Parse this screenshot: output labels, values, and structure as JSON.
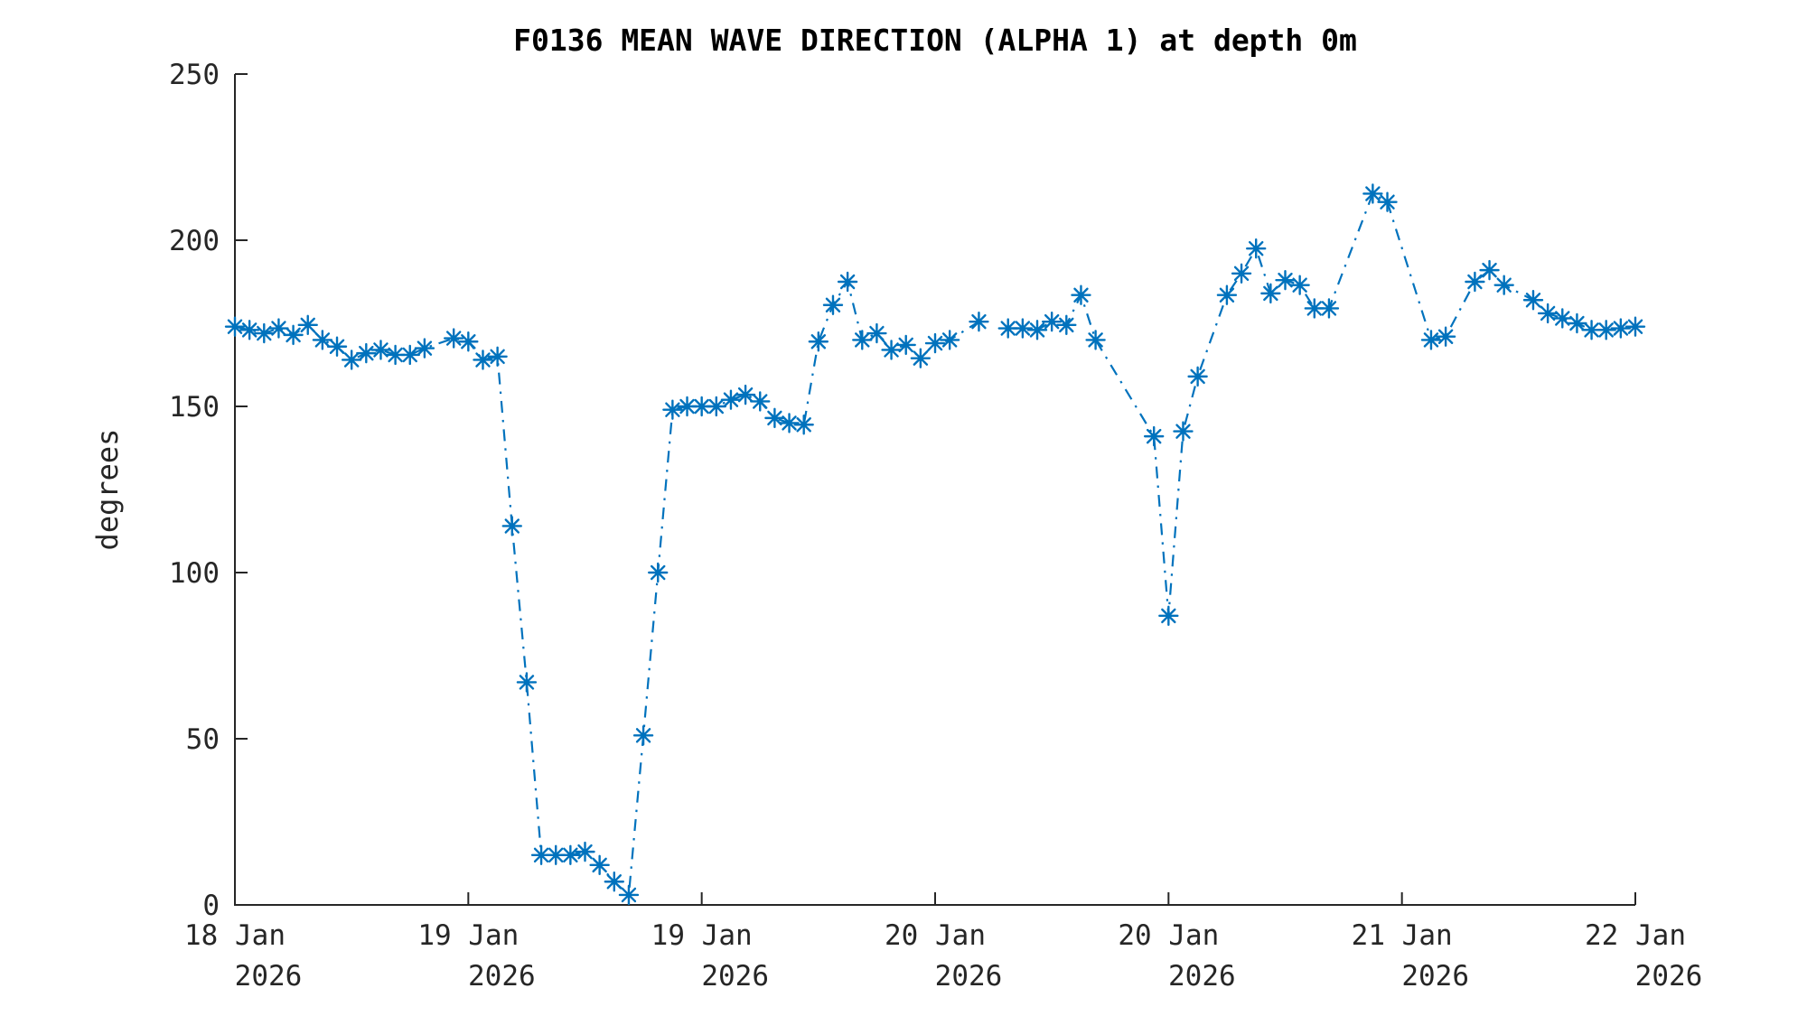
{
  "chart_data": {
    "type": "line",
    "title": "F0136 MEAN WAVE DIRECTION (ALPHA 1) at depth 0m",
    "ylabel": "degrees",
    "xlabel": "",
    "ylim": [
      0,
      250
    ],
    "yticks": [
      0,
      50,
      100,
      150,
      200,
      250
    ],
    "xticks": [
      {
        "day": "18 Jan",
        "year": "2026"
      },
      {
        "day": "19 Jan",
        "year": "2026"
      },
      {
        "day": "19 Jan",
        "year": "2026"
      },
      {
        "day": "20 Jan",
        "year": "2026"
      },
      {
        "day": "20 Jan",
        "year": "2026"
      },
      {
        "day": "21 Jan",
        "year": "2026"
      },
      {
        "day": "22 Jan",
        "year": "2026"
      }
    ],
    "x_start": "18 Jan 2026 00:00",
    "x_end": "22 Jan 2026 00:00",
    "x_interval_hours": 1,
    "grid": false,
    "legend": "none",
    "series": [
      {
        "name": "mean wave direction",
        "units": "degrees",
        "color": "#0072BD",
        "linestyle": "dash-dot",
        "marker": "asterisk",
        "segments": [
          [
            0,
            51
          ],
          [
            53,
            96
          ]
        ],
        "values": [
          174,
          173,
          172,
          173.5,
          171.5,
          174.5,
          170,
          168,
          164,
          166,
          167,
          165.5,
          165.5,
          167.5,
          null,
          170.5,
          169.5,
          164,
          165,
          114,
          67,
          15,
          15,
          15,
          16,
          12,
          7,
          3,
          51,
          100,
          149,
          150,
          150,
          150,
          152,
          153.5,
          151.5,
          146.5,
          145,
          144.5,
          169.5,
          180.5,
          187.5,
          170,
          172,
          167,
          168.5,
          164.5,
          169,
          170,
          null,
          175.5,
          null,
          173.5,
          173.5,
          173,
          175.5,
          174.5,
          183.5,
          170,
          null,
          null,
          null,
          141,
          87,
          142.5,
          159,
          null,
          183.5,
          190,
          197.5,
          184,
          188,
          186.5,
          179.5,
          179.5,
          null,
          null,
          214,
          211.5,
          null,
          null,
          170,
          171,
          null,
          187.5,
          191,
          186.5,
          null,
          182,
          178,
          176.5,
          175,
          173,
          173,
          173.5,
          174
        ]
      }
    ]
  },
  "style": {
    "axis_color": "#262626",
    "line_color": "#0072BD",
    "background": "#ffffff"
  }
}
